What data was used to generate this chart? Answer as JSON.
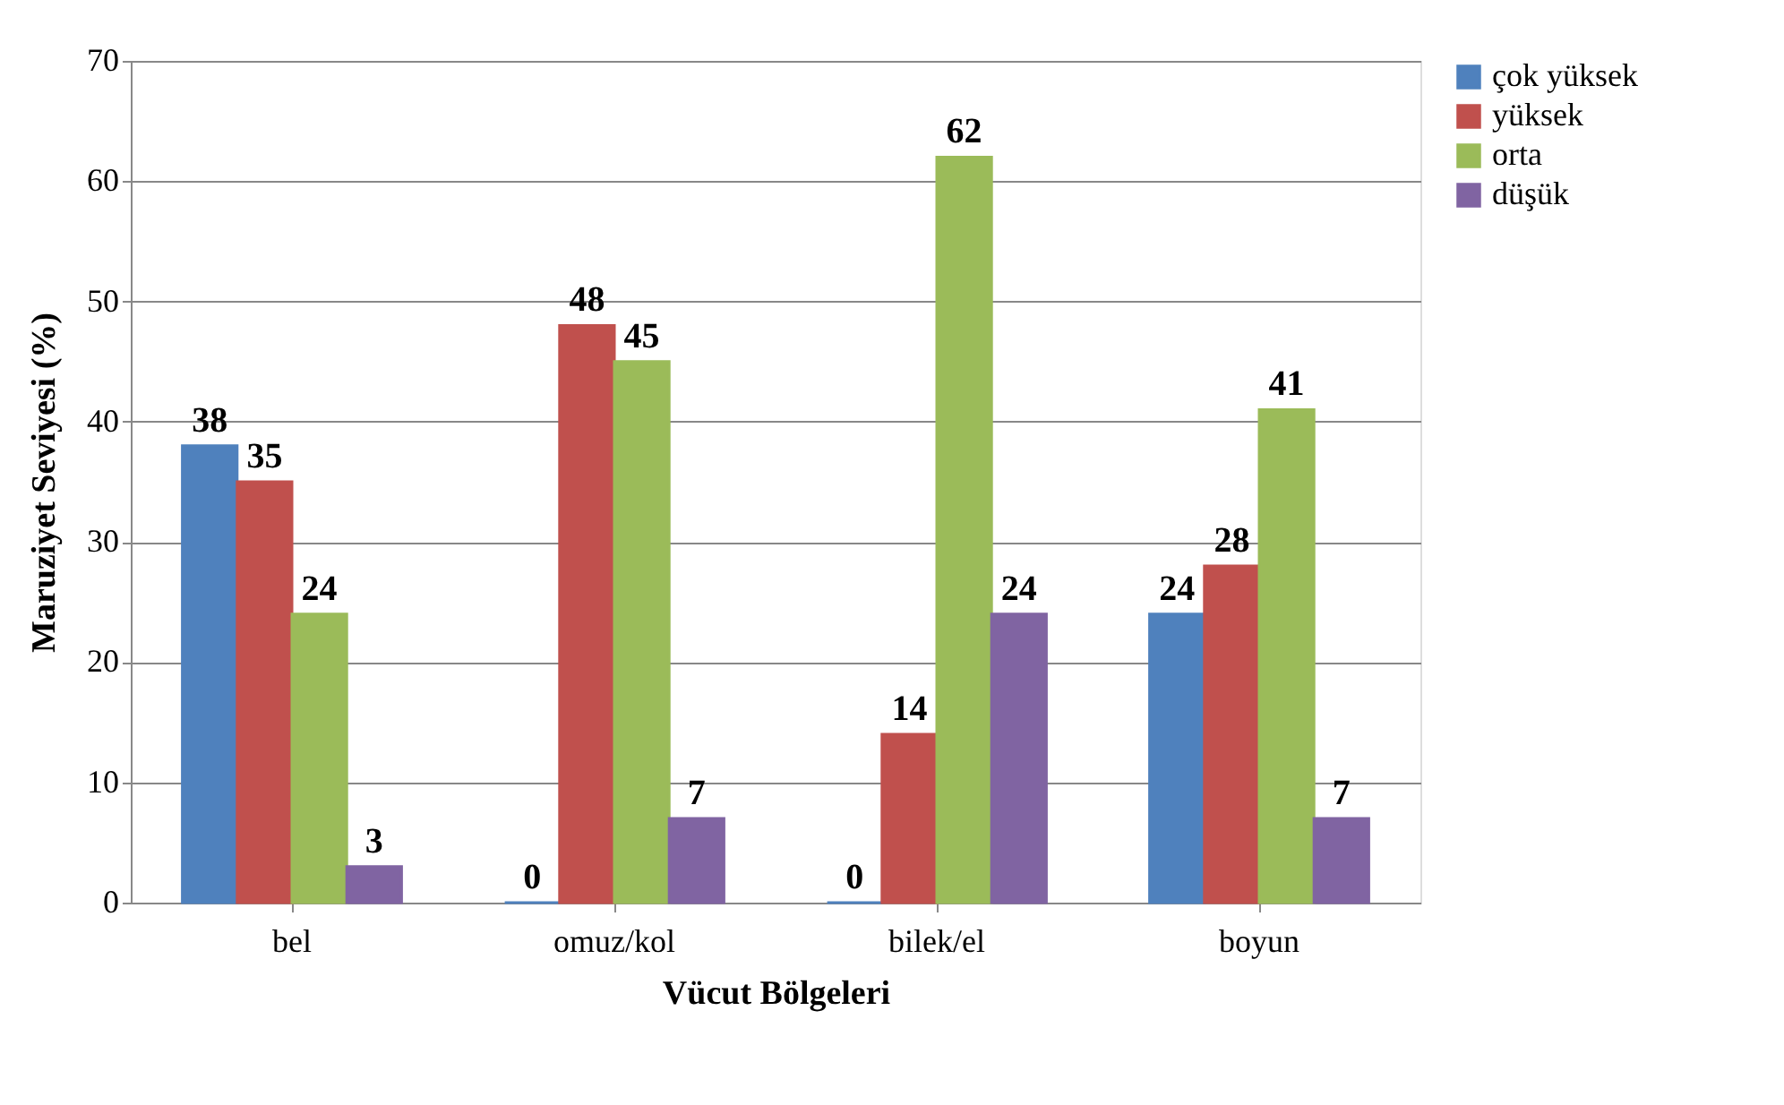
{
  "chart_data": {
    "type": "bar",
    "xlabel": "Vücut Bölgeleri",
    "ylabel": "Maruziyet Seviyesi (%)",
    "categories": [
      "bel",
      "omuz/kol",
      "bilek/el",
      "boyun"
    ],
    "series": [
      {
        "name": "çok yüksek",
        "color": "#4f81bd",
        "values": [
          38,
          0,
          0,
          24
        ]
      },
      {
        "name": "yüksek",
        "color": "#c0504d",
        "values": [
          35,
          48,
          14,
          28
        ]
      },
      {
        "name": "orta",
        "color": "#9bbb59",
        "values": [
          24,
          45,
          62,
          41
        ]
      },
      {
        "name": "düşük",
        "color": "#8064a2",
        "values": [
          3,
          7,
          24,
          7
        ]
      }
    ],
    "ylim": [
      0,
      70
    ],
    "yticks": [
      0,
      10,
      20,
      30,
      40,
      50,
      60,
      70
    ],
    "grid": "y",
    "legend": "right",
    "data_labels": true
  }
}
